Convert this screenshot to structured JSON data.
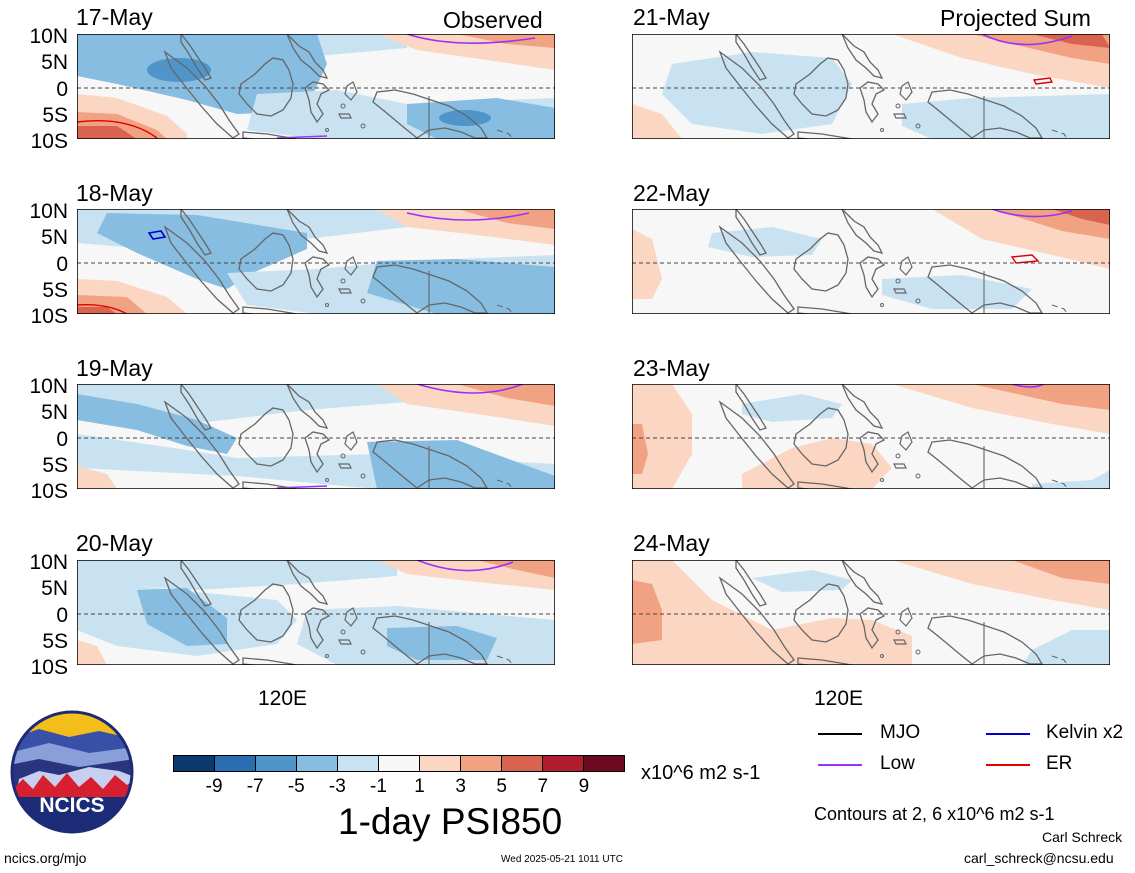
{
  "headers": {
    "left": "Observed",
    "right": "Projected Sum"
  },
  "panels_left": [
    {
      "date": "17-May"
    },
    {
      "date": "18-May"
    },
    {
      "date": "19-May"
    },
    {
      "date": "20-May"
    }
  ],
  "panels_right": [
    {
      "date": "21-May"
    },
    {
      "date": "22-May"
    },
    {
      "date": "23-May"
    },
    {
      "date": "24-May"
    }
  ],
  "lat_labels": [
    "10N",
    "5N",
    "0",
    "5S",
    "10S"
  ],
  "lon_label": "120E",
  "colorbar": {
    "labels": [
      "-9",
      "-7",
      "-5",
      "-3",
      "-1",
      "1",
      "3",
      "5",
      "7",
      "9"
    ],
    "colors": [
      "#0b3b6e",
      "#2a6db3",
      "#4f95c9",
      "#86bde0",
      "#c9e2f1",
      "#f7f7f7",
      "#fbd6c2",
      "#f1a283",
      "#d86450",
      "#b01c2e",
      "#6d0a22"
    ],
    "units": "x10^6 m2 s-1",
    "title": "1-day PSI850"
  },
  "legend": [
    {
      "label": "MJO",
      "color": "#000000"
    },
    {
      "label": "Kelvin x2",
      "color": "#0000cc"
    },
    {
      "label": "Low",
      "color": "#9b30ff"
    },
    {
      "label": "ER",
      "color": "#e00000"
    }
  ],
  "contours_note": "Contours at 2, 6 x10^6 m2 s-1",
  "logo": {
    "text": "NCICS"
  },
  "footer": {
    "url": "ncics.org/mjo",
    "timestamp": "Wed 2025-05-21 1011 UTC",
    "author": "Carl Schreck",
    "email": "carl_schreck@ncsu.edu"
  }
}
